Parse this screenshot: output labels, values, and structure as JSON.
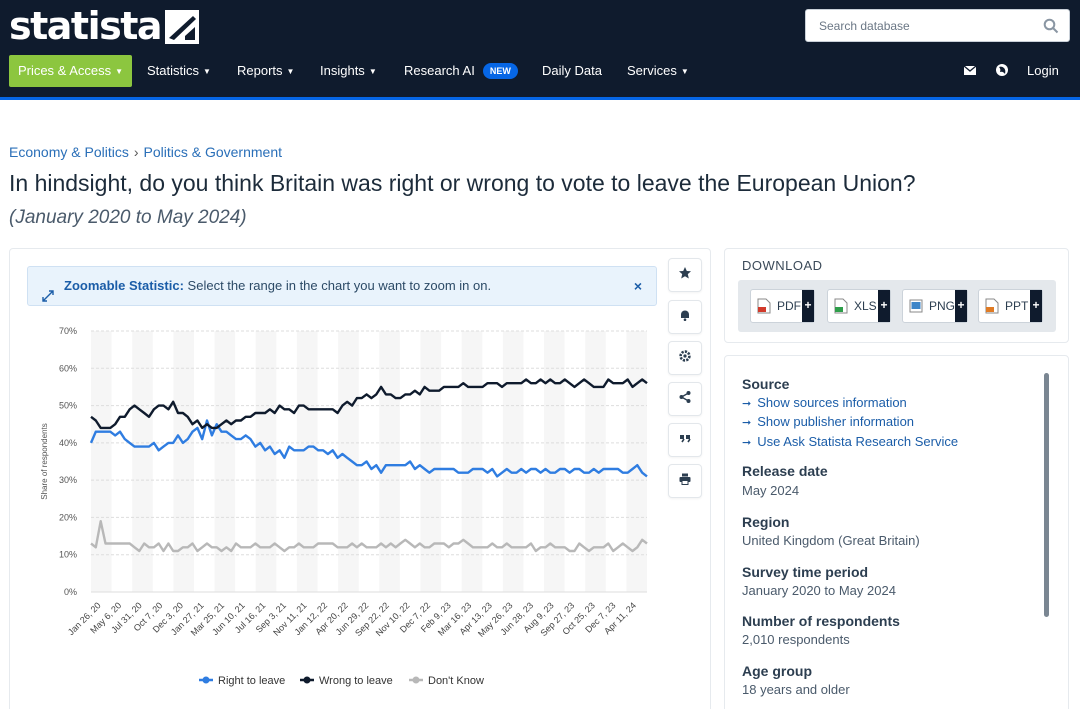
{
  "header": {
    "logo_text": "statista",
    "search_placeholder": "Search database",
    "nav": {
      "prices": "Prices & Access",
      "statistics": "Statistics",
      "reports": "Reports",
      "insights": "Insights",
      "research_ai": "Research AI",
      "research_ai_badge": "NEW",
      "daily_data": "Daily Data",
      "services": "Services",
      "login": "Login"
    }
  },
  "breadcrumb": {
    "first": "Economy & Politics",
    "separator": "›",
    "second": "Politics & Government"
  },
  "page": {
    "title": "In hindsight, do you think Britain was right or wrong to vote to leave the European Union?",
    "subtitle": "(January 2020 to May 2024)"
  },
  "zoom_banner": {
    "label": "Zoomable Statistic:",
    "text": "Select the range in the chart you want to zoom in on.",
    "close": "×"
  },
  "download": {
    "heading": "DOWNLOAD",
    "buttons": [
      {
        "label": "PDF",
        "color": "#d23a2b"
      },
      {
        "label": "XLS",
        "color": "#2e9e4a"
      },
      {
        "label": "PNG",
        "color": "#3f86c8"
      },
      {
        "label": "PPT",
        "color": "#e07b24"
      }
    ],
    "plus": "+"
  },
  "info": {
    "source_heading": "Source",
    "links": [
      "Show sources information",
      "Show publisher information",
      "Use Ask Statista Research Service"
    ],
    "release_heading": "Release date",
    "release_value": "May 2024",
    "region_heading": "Region",
    "region_value": "United Kingdom (Great Britain)",
    "period_heading": "Survey time period",
    "period_value": "January 2020 to May 2024",
    "respondents_heading": "Number of respondents",
    "respondents_value": "2,010 respondents",
    "age_heading": "Age group",
    "age_value": "18 years and older"
  },
  "chart_data": {
    "type": "line",
    "ylabel": "Share of respondents",
    "ylim": [
      0,
      70
    ],
    "yticks": [
      "0%",
      "10%",
      "20%",
      "30%",
      "40%",
      "50%",
      "60%",
      "70%"
    ],
    "x_tick_labels": [
      "Jan 26, 20",
      "May 6, 20",
      "Jul 31, 20",
      "Oct 7, 20",
      "Dec 3, 20",
      "Jan 27, 21",
      "Mar 25, 21",
      "Jun 10, 21",
      "Jul 16, 21",
      "Sep 3, 21",
      "Nov 11, 21",
      "Jan 12, 22",
      "Apr 20, 22",
      "Jun 29, 22",
      "Sep 22, 22",
      "Nov 10, 22",
      "Dec 7, 22",
      "Feb 9, 23",
      "Mar 16, 23",
      "Apr 13, 23",
      "May 26, 23",
      "Jun 28, 23",
      "Aug 9, 23",
      "Sep 27, 23",
      "Oct 25, 23",
      "Dec 7, 23",
      "Apr 11, 24"
    ],
    "legend_position": "bottom",
    "grid": true,
    "series": [
      {
        "name": "Right to leave",
        "color": "#2f7de1",
        "values": [
          40,
          43,
          43,
          43,
          43,
          42,
          43,
          41,
          40,
          39,
          39,
          39,
          39,
          40,
          38,
          39,
          40,
          40,
          42,
          40,
          41,
          43,
          44,
          41,
          46,
          42,
          45,
          43,
          43,
          42,
          41,
          41,
          42,
          41,
          39,
          40,
          38,
          39,
          37,
          38,
          36,
          39,
          38,
          38,
          38,
          39,
          39,
          38,
          38,
          37,
          38,
          36,
          37,
          36,
          35,
          34,
          34,
          35,
          33,
          34,
          32,
          34,
          34,
          34,
          34,
          34,
          35,
          33,
          34,
          33,
          32,
          33,
          33,
          33,
          33,
          33,
          32,
          32,
          32,
          33,
          33,
          33,
          32,
          33,
          31,
          32,
          33,
          32,
          32,
          33,
          32,
          33,
          33,
          32,
          33,
          32,
          32,
          33,
          33,
          32,
          33,
          33,
          32,
          32,
          33,
          32,
          33,
          33,
          33,
          33,
          32,
          32,
          33,
          34,
          32,
          31
        ]
      },
      {
        "name": "Wrong to leave",
        "color": "#0f1b2d",
        "values": [
          47,
          46,
          44,
          44,
          44,
          45,
          47,
          47,
          49,
          50,
          49,
          48,
          47,
          49,
          50,
          50,
          49,
          51,
          48,
          48,
          47,
          45,
          46,
          44,
          45,
          44,
          44,
          45,
          46,
          45,
          46,
          46,
          47,
          47,
          48,
          48,
          48,
          49,
          48,
          50,
          49,
          49,
          48,
          50,
          50,
          49,
          49,
          49,
          49,
          49,
          49,
          48,
          50,
          51,
          50,
          52,
          52,
          53,
          52,
          53,
          55,
          53,
          53,
          52,
          52,
          53,
          53,
          54,
          53,
          55,
          54,
          54,
          54,
          55,
          55,
          55,
          55,
          56,
          55,
          55,
          55,
          55,
          56,
          56,
          56,
          55,
          56,
          56,
          56,
          56,
          57,
          56,
          56,
          57,
          56,
          57,
          56,
          56,
          57,
          56,
          55,
          56,
          57,
          56,
          55,
          55,
          55,
          57,
          56,
          56,
          56,
          57,
          55,
          56,
          57,
          56
        ]
      },
      {
        "name": "Don't Know",
        "color": "#b8b8b8",
        "values": [
          13,
          12,
          19,
          13,
          13,
          13,
          13,
          13,
          13,
          12,
          11,
          13,
          12,
          12,
          13,
          11,
          13,
          11,
          11,
          12,
          12,
          13,
          11,
          12,
          13,
          12,
          12,
          11,
          12,
          11,
          13,
          12,
          12,
          12,
          13,
          12,
          12,
          12,
          13,
          12,
          11,
          12,
          12,
          13,
          12,
          12,
          12,
          13,
          13,
          13,
          13,
          12,
          12,
          12,
          13,
          12,
          13,
          12,
          12,
          12,
          13,
          12,
          13,
          12,
          13,
          14,
          13,
          12,
          13,
          12,
          12,
          13,
          13,
          13,
          12,
          13,
          13,
          14,
          13,
          12,
          12,
          12,
          12,
          13,
          12,
          12,
          13,
          12,
          12,
          12,
          12,
          13,
          11,
          12,
          12,
          13,
          12,
          12,
          12,
          11,
          11,
          13,
          12,
          11,
          12,
          12,
          12,
          13,
          11,
          12,
          13,
          12,
          11,
          12,
          14,
          13
        ]
      }
    ]
  }
}
